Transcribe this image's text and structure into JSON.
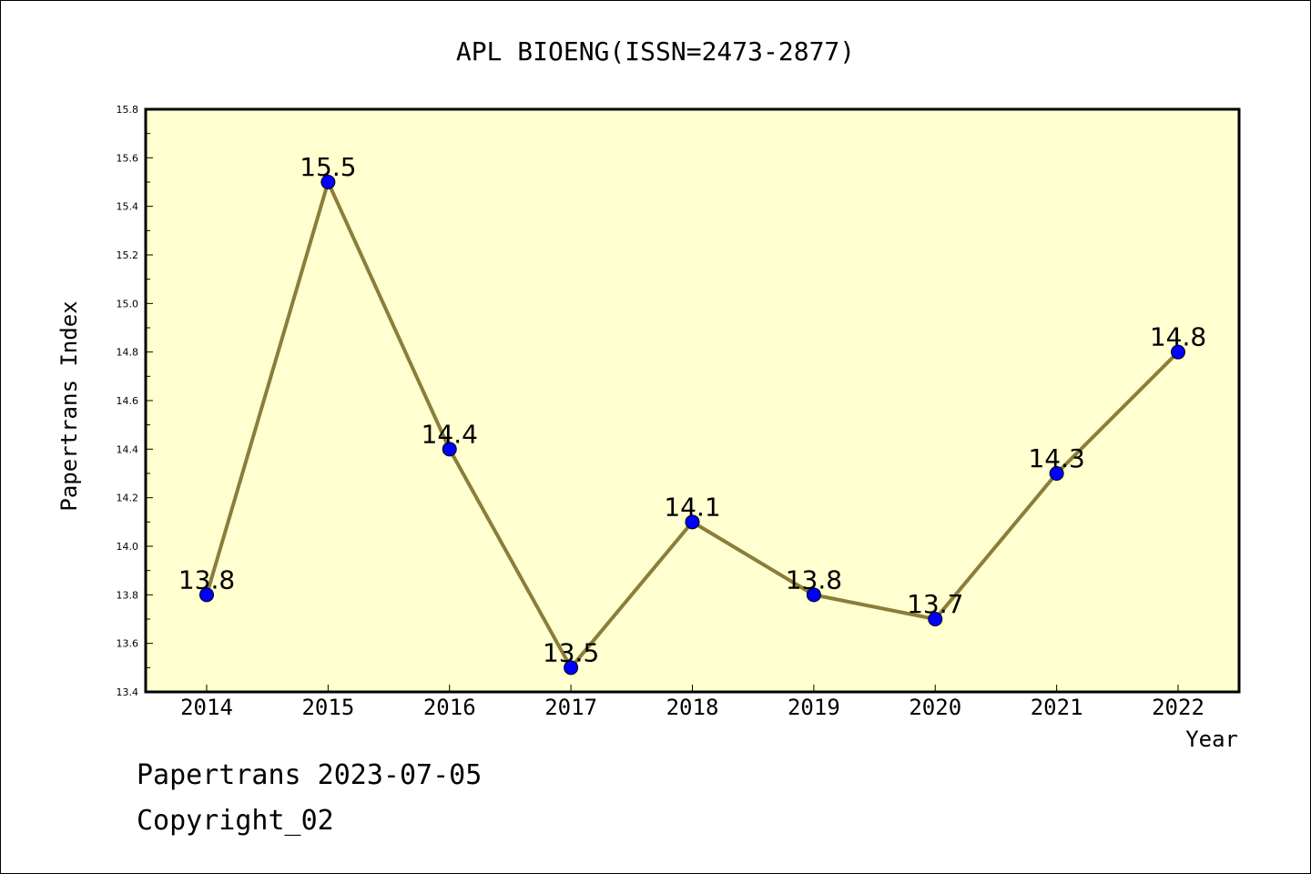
{
  "chart_data": {
    "type": "line",
    "title": "APL BIOENG(ISSN=2473-2877)",
    "xlabel": "Year",
    "ylabel": "Papertrans Index",
    "categories": [
      "2014",
      "2015",
      "2016",
      "2017",
      "2018",
      "2019",
      "2020",
      "2021",
      "2022"
    ],
    "series": [
      {
        "values": [
          13.8,
          15.5,
          14.4,
          13.5,
          14.1,
          13.8,
          13.7,
          14.3,
          14.8
        ],
        "labels": [
          "13.8",
          "15.5",
          "14.4",
          "13.5",
          "14.1",
          "13.8",
          "13.7",
          "14.3",
          "14.8"
        ]
      }
    ],
    "ylim": [
      13.4,
      15.8
    ],
    "yticks": [
      "13.4",
      "13.6",
      "13.8",
      "14.0",
      "14.2",
      "14.4",
      "14.6",
      "14.8",
      "15.0",
      "15.2",
      "15.4",
      "15.6",
      "15.8"
    ],
    "grid": false,
    "colors": {
      "line": "#8b7d3a",
      "marker": "#0000ff",
      "plot_background": "#ffffd0"
    }
  },
  "footer": {
    "date_text": "Papertrans 2023-07-05",
    "copyright_text": "Copyright_02"
  }
}
